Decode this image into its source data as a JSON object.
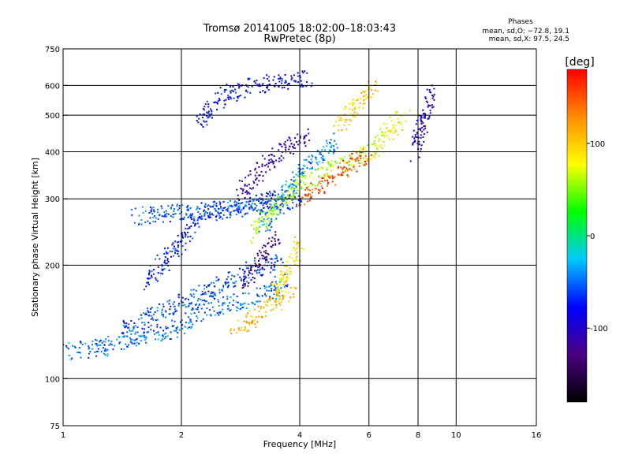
{
  "chart_data": {
    "type": "scatter",
    "title": "Tromsø 20141005 18:02:00–18:03:43",
    "subtitle": "RwPretec (8p)",
    "xlabel": "Frequency [MHz]",
    "ylabel": "Stationary phase Virtual Height [km]",
    "x_scale": "log",
    "y_scale": "log",
    "xlim": [
      1,
      16
    ],
    "ylim": [
      75,
      750
    ],
    "x_ticks": [
      1,
      2,
      4,
      6,
      8,
      10,
      16
    ],
    "y_ticks": [
      75,
      100,
      200,
      300,
      400,
      500,
      600,
      750
    ],
    "grid": true,
    "stats": {
      "heading": "Phases",
      "line_o": "mean, sd,O: −72.8, 19.1",
      "line_x": "mean, sd,X:  97.5, 24.5"
    },
    "colorbar": {
      "label": "[deg]",
      "range": [
        -180,
        180
      ],
      "ticks": [
        100,
        0,
        -100
      ],
      "colors": [
        "#000000",
        "#4b0082",
        "#0000ff",
        "#00c8ff",
        "#00ff00",
        "#ffff00",
        "#ff8c00",
        "#ff0000"
      ]
    },
    "traces": [
      {
        "x": [
          1.0,
          1.3,
          1.6,
          1.9,
          2.2,
          2.6,
          3.0,
          3.4,
          3.7
        ],
        "y": [
          118,
          122,
          132,
          135,
          150,
          158,
          163,
          172,
          185
        ],
        "phase": -50
      },
      {
        "x": [
          1.4,
          1.7,
          2.0,
          2.3,
          2.6,
          3.0,
          3.6
        ],
        "y": [
          133,
          150,
          160,
          170,
          180,
          195,
          205
        ],
        "phase": -60
      },
      {
        "x": [
          1.6,
          1.8,
          2.0,
          2.1,
          2.3,
          2.6,
          3.0,
          3.4,
          3.8
        ],
        "y": [
          180,
          205,
          230,
          260,
          275,
          285,
          290,
          300,
          310
        ],
        "phase": -70
      },
      {
        "x": [
          1.5,
          1.8,
          2.2,
          2.6,
          3.0,
          3.5,
          4.0
        ],
        "y": [
          270,
          275,
          280,
          282,
          285,
          290,
          300
        ],
        "phase": -55
      },
      {
        "x": [
          2.2,
          2.4,
          2.7,
          3.0,
          3.4,
          3.8,
          4.2
        ],
        "y": [
          470,
          540,
          580,
          600,
          610,
          620,
          625
        ],
        "phase": -80
      },
      {
        "x": [
          2.8,
          3.1,
          3.4,
          3.8,
          4.2
        ],
        "y": [
          310,
          350,
          390,
          420,
          440
        ],
        "phase": -110
      },
      {
        "x": [
          3.2,
          3.5,
          3.8,
          4.2,
          4.6,
          5.0
        ],
        "y": [
          250,
          290,
          330,
          370,
          400,
          430
        ],
        "phase": -40
      },
      {
        "x": [
          3.0,
          3.3,
          3.6,
          4.0,
          4.5,
          5.0,
          5.5,
          6.0
        ],
        "y": [
          240,
          270,
          300,
          330,
          350,
          370,
          380,
          400
        ],
        "phase": 60
      },
      {
        "x": [
          4.0,
          4.4,
          4.8,
          5.2,
          5.6,
          6.0
        ],
        "y": [
          300,
          320,
          340,
          360,
          380,
          400
        ],
        "phase": 150
      },
      {
        "x": [
          2.7,
          3.0,
          3.3,
          3.6,
          3.8
        ],
        "y": [
          135,
          145,
          155,
          165,
          175
        ],
        "phase": 110
      },
      {
        "x": [
          3.4,
          3.6,
          3.8,
          4.0
        ],
        "y": [
          165,
          180,
          200,
          230
        ],
        "phase": 90
      },
      {
        "x": [
          2.9,
          3.1,
          3.3,
          3.5
        ],
        "y": [
          180,
          200,
          220,
          240
        ],
        "phase": -130
      },
      {
        "x": [
          6.0,
          6.3,
          6.6,
          7.0,
          7.4
        ],
        "y": [
          390,
          420,
          450,
          480,
          500
        ],
        "phase": 70
      },
      {
        "x": [
          7.8,
          8.0,
          8.3,
          8.6
        ],
        "y": [
          400,
          450,
          500,
          580
        ],
        "phase": -100
      },
      {
        "x": [
          5.0,
          5.4,
          5.8,
          6.2
        ],
        "y": [
          470,
          520,
          560,
          600
        ],
        "phase": 100
      }
    ]
  }
}
